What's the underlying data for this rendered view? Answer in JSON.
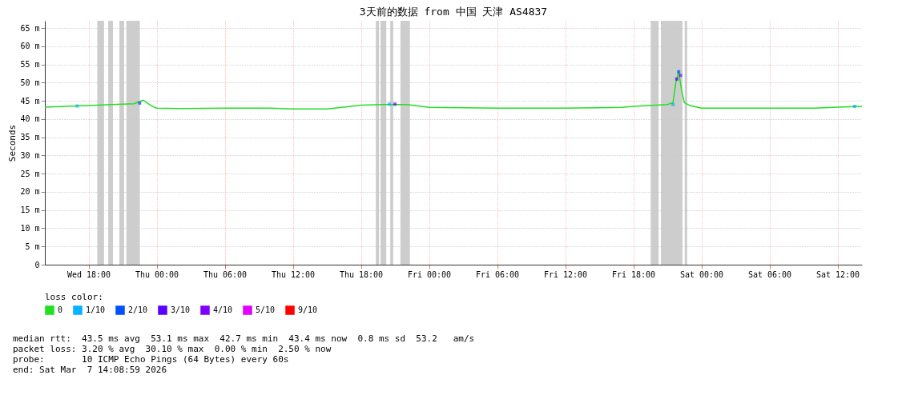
{
  "chart_data": {
    "type": "line",
    "title": "3天前的数据 from 中国 天津 AS4837",
    "ylabel": "Seconds",
    "legend_title": "loss color:",
    "legend": "bottom",
    "grid": true,
    "xlim": [
      "2026-03-04T14:09",
      "2026-03-07T14:09"
    ],
    "xticks": [
      {
        "value": "2026-03-04T18:00",
        "label": "Wed 18:00"
      },
      {
        "value": "2026-03-05T00:00",
        "label": "Thu 00:00"
      },
      {
        "value": "2026-03-05T06:00",
        "label": "Thu 06:00"
      },
      {
        "value": "2026-03-05T12:00",
        "label": "Thu 12:00"
      },
      {
        "value": "2026-03-05T18:00",
        "label": "Thu 18:00"
      },
      {
        "value": "2026-03-06T00:00",
        "label": "Fri 00:00"
      },
      {
        "value": "2026-03-06T06:00",
        "label": "Fri 06:00"
      },
      {
        "value": "2026-03-06T12:00",
        "label": "Fri 12:00"
      },
      {
        "value": "2026-03-06T18:00",
        "label": "Fri 18:00"
      },
      {
        "value": "2026-03-07T00:00",
        "label": "Sat 00:00"
      },
      {
        "value": "2026-03-07T06:00",
        "label": "Sat 06:00"
      },
      {
        "value": "2026-03-07T12:00",
        "label": "Sat 12:00"
      }
    ],
    "ylim": [
      0,
      67
    ],
    "yticks": [
      0,
      {
        "value": 5,
        "label": "5 m"
      },
      {
        "value": 10,
        "label": "10 m"
      },
      {
        "value": 15,
        "label": "15 m"
      },
      {
        "value": 20,
        "label": "20 m"
      },
      {
        "value": 25,
        "label": "25 m"
      },
      {
        "value": 30,
        "label": "30 m"
      },
      {
        "value": 35,
        "label": "35 m"
      },
      {
        "value": 40,
        "label": "40 m"
      },
      {
        "value": 45,
        "label": "45 m"
      },
      {
        "value": 50,
        "label": "50 m"
      },
      {
        "value": 55,
        "label": "55 m"
      },
      {
        "value": 60,
        "label": "60 m"
      },
      {
        "value": 65,
        "label": "65 m"
      }
    ],
    "series": [
      {
        "name": "0",
        "color": "#20e020",
        "x": [
          "2026-03-04T14:09",
          "2026-03-04T16:00",
          "2026-03-04T18:00",
          "2026-03-04T20:00",
          "2026-03-04T22:00",
          "2026-03-04T22:50",
          "2026-03-04T23:30",
          "2026-03-05T00:00",
          "2026-03-05T02:00",
          "2026-03-05T06:00",
          "2026-03-05T10:00",
          "2026-03-05T12:00",
          "2026-03-05T15:00",
          "2026-03-05T16:30",
          "2026-03-05T18:00",
          "2026-03-05T20:00",
          "2026-03-05T22:00",
          "2026-03-06T00:00",
          "2026-03-06T06:00",
          "2026-03-06T12:00",
          "2026-03-06T17:00",
          "2026-03-06T18:00",
          "2026-03-06T20:00",
          "2026-03-06T21:00",
          "2026-03-06T21:30",
          "2026-03-06T21:45",
          "2026-03-06T22:00",
          "2026-03-06T22:15",
          "2026-03-06T22:30",
          "2026-03-06T23:00",
          "2026-03-07T00:00",
          "2026-03-07T06:00",
          "2026-03-07T10:00",
          "2026-03-07T12:00",
          "2026-03-07T14:09"
        ],
        "values": [
          43.3,
          43.5,
          43.7,
          44,
          44.2,
          45.2,
          43.7,
          43,
          42.9,
          43,
          43,
          42.8,
          42.8,
          43.3,
          43.8,
          44,
          44,
          43.2,
          43,
          43,
          43.2,
          43.5,
          43.8,
          44,
          44.5,
          50,
          53,
          48,
          44.5,
          43.7,
          43,
          43,
          43,
          43.3,
          43.5
        ]
      },
      {
        "name": "1/10",
        "type": "scatter",
        "color": "#00b4ff",
        "x": [
          "2026-03-04T17:00",
          "2026-03-05T20:30",
          "2026-03-06T21:30",
          "2026-03-07T13:30"
        ],
        "values": [
          43.6,
          44.1,
          44,
          43.5
        ]
      },
      {
        "name": "2/10",
        "type": "scatter",
        "color": "#0050ff",
        "x": [
          "2026-03-04T22:30",
          "2026-03-06T22:00"
        ],
        "values": [
          44.4,
          53
        ]
      },
      {
        "name": "3/10",
        "type": "scatter",
        "color": "#5a00ff",
        "x": [
          "2026-03-05T21:00",
          "2026-03-06T21:50"
        ],
        "values": [
          44.1,
          51
        ]
      },
      {
        "name": "4/10",
        "type": "scatter",
        "color": "#8000ff",
        "x": [
          "2026-03-06T22:10"
        ],
        "values": [
          52
        ]
      },
      {
        "name": "5/10",
        "type": "scatter",
        "color": "#e000ff"
      },
      {
        "name": "9/10",
        "type": "scatter",
        "color": "#ff0000"
      }
    ],
    "bands": [
      {
        "axis": "x",
        "from": "2026-03-04T18:46",
        "to": "2026-03-04T19:22",
        "color": "#c8c8c8"
      },
      {
        "axis": "x",
        "from": "2026-03-04T19:44",
        "to": "2026-03-04T20:09",
        "color": "#c8c8c8"
      },
      {
        "axis": "x",
        "from": "2026-03-04T20:43",
        "to": "2026-03-04T21:08",
        "color": "#c8c8c8"
      },
      {
        "axis": "x",
        "from": "2026-03-04T21:20",
        "to": "2026-03-04T22:31",
        "color": "#c8c8c8"
      },
      {
        "axis": "x",
        "from": "2026-03-05T19:19",
        "to": "2026-03-05T19:36",
        "color": "#c8c8c8"
      },
      {
        "axis": "x",
        "from": "2026-03-05T19:44",
        "to": "2026-03-05T20:14",
        "color": "#c8c8c8"
      },
      {
        "axis": "x",
        "from": "2026-03-05T20:35",
        "to": "2026-03-05T20:51",
        "color": "#c8c8c8"
      },
      {
        "axis": "x",
        "from": "2026-03-05T21:29",
        "to": "2026-03-05T22:19",
        "color": "#c8c8c8"
      },
      {
        "axis": "x",
        "from": "2026-03-06T19:32",
        "to": "2026-03-06T20:14",
        "color": "#c8c8c8"
      },
      {
        "axis": "x",
        "from": "2026-03-06T20:26",
        "to": "2026-03-06T22:20",
        "color": "#c8c8c8"
      },
      {
        "axis": "x",
        "from": "2026-03-06T22:32",
        "to": "2026-03-06T22:45",
        "color": "#c8c8c8"
      }
    ],
    "annotations": [
      "median rtt:  43.5 ms avg  53.1 ms max  42.7 ms min  43.4 ms now  0.8 ms sd  53.2   am/s",
      "packet loss: 3.20 % avg  30.10 % max  0.00 % min  2.50 % now",
      "probe:       10 ICMP Echo Pings (64 Bytes) every 60s",
      "end: Sat Mar  7 14:08:59 2026"
    ]
  }
}
